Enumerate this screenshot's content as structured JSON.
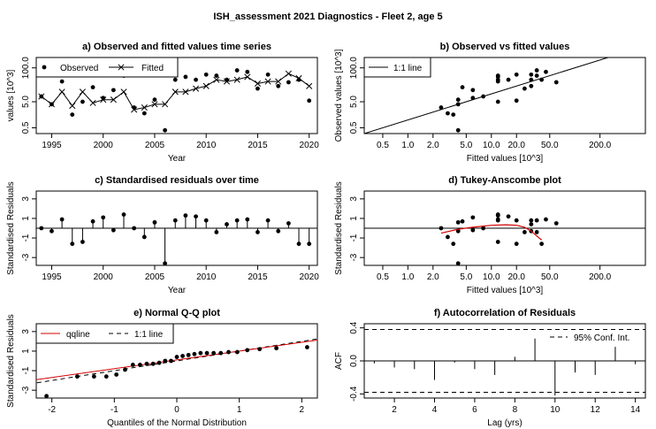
{
  "chart_data": {
    "suptitle": "ISH_assessment 2021 Diagnostics - Fleet 2, age 5",
    "panels": [
      {
        "id": "a",
        "type": "line",
        "title": "a) Observed and fitted values time series",
        "xlabel": "Year",
        "ylabel": "values [10^3]",
        "yscale": "log",
        "xlim": [
          1993.5,
          2020.8
        ],
        "ylim": [
          0.3,
          250
        ],
        "xticks": [
          1995,
          2000,
          2005,
          2010,
          2015,
          2020
        ],
        "yticks": [
          0.5,
          5.0,
          100.0
        ],
        "ytick_labels": [
          "0.5",
          "5.0",
          "100.0"
        ],
        "legend": [
          "Observed",
          "Fitted"
        ],
        "years": [
          1994,
          1995,
          1996,
          1997,
          1998,
          1999,
          2000,
          2001,
          2002,
          2003,
          2004,
          2005,
          2006,
          2007,
          2008,
          2009,
          2010,
          2011,
          2012,
          2013,
          2014,
          2015,
          2016,
          2017,
          2018,
          2019,
          2020
        ],
        "observed": [
          8,
          4,
          30,
          1.6,
          5,
          18,
          7,
          14,
          50,
          3,
          1.8,
          6,
          0.4,
          35,
          45,
          35,
          55,
          50,
          35,
          80,
          70,
          16,
          55,
          20,
          28,
          35,
          5.5
        ],
        "fitted": [
          8,
          4,
          12,
          3.5,
          12,
          4.5,
          6,
          6,
          12,
          2.5,
          3,
          4,
          4,
          12,
          12,
          16,
          20,
          35,
          30,
          35,
          45,
          25,
          30,
          30,
          60,
          40,
          20
        ]
      },
      {
        "id": "b",
        "type": "scatter",
        "title": "b) Observed vs fitted values",
        "xlabel": "Fitted values [10^3]",
        "ylabel": "Observed values [10^3]",
        "xscale": "log",
        "yscale": "log",
        "xlim": [
          0.3,
          700
        ],
        "ylim": [
          0.3,
          250
        ],
        "xticks": [
          0.5,
          1.0,
          2.0,
          5.0,
          10.0,
          20.0,
          50.0,
          200.0
        ],
        "xtick_labels": [
          "0.5",
          "1.0",
          "2.0",
          "5.0",
          "10.0",
          "20.0",
          "50.0",
          "200.0"
        ],
        "yticks": [
          0.5,
          5.0,
          100.0
        ],
        "ytick_labels": [
          "0.5",
          "5.0",
          "100.0"
        ],
        "legend": [
          "1:1 line"
        ],
        "x": [
          8,
          4,
          12,
          3.5,
          12,
          4.5,
          6,
          6,
          12,
          2.5,
          3,
          4,
          4,
          12,
          12,
          16,
          20,
          35,
          30,
          35,
          45,
          25,
          30,
          30,
          60,
          40,
          20
        ],
        "y": [
          8,
          4,
          30,
          1.6,
          5,
          18,
          7,
          14,
          50,
          3,
          1.8,
          6,
          0.4,
          35,
          45,
          35,
          55,
          50,
          35,
          80,
          70,
          16,
          55,
          20,
          28,
          35,
          5.5
        ]
      },
      {
        "id": "c",
        "type": "stem",
        "title": "c) Standardised residuals over time",
        "xlabel": "Year",
        "ylabel": "Standardised Residuals",
        "xlim": [
          1993.5,
          2020.8
        ],
        "ylim": [
          -3.8,
          3.8
        ],
        "xticks": [
          1995,
          2000,
          2005,
          2010,
          2015,
          2020
        ],
        "yticks": [
          -3,
          -1,
          1,
          3
        ],
        "years": [
          1994,
          1995,
          1996,
          1997,
          1998,
          1999,
          2000,
          2001,
          2002,
          2003,
          2004,
          2005,
          2006,
          2007,
          2008,
          2009,
          2010,
          2011,
          2012,
          2013,
          2014,
          2015,
          2016,
          2017,
          2018,
          2019,
          2020
        ],
        "residuals": [
          0.0,
          -0.3,
          0.9,
          -1.6,
          -1.4,
          0.7,
          1.1,
          -0.2,
          1.4,
          0.0,
          -0.9,
          0.6,
          -3.6,
          0.8,
          1.3,
          1.2,
          0.8,
          -0.4,
          0.4,
          0.8,
          0.9,
          -0.4,
          0.8,
          -0.3,
          0.5,
          -1.6,
          -1.6
        ]
      },
      {
        "id": "d",
        "type": "scatter",
        "title": "d) Tukey-Anscombe plot",
        "xlabel": "Fitted values [10^3]",
        "ylabel": "Standardised Residuals",
        "xscale": "log",
        "xlim": [
          0.3,
          700
        ],
        "ylim": [
          -3.8,
          3.8
        ],
        "xticks": [
          0.5,
          1.0,
          2.0,
          5.0,
          10.0,
          20.0,
          50.0,
          200.0
        ],
        "xtick_labels": [
          "0.5",
          "1.0",
          "2.0",
          "5.0",
          "10.0",
          "20.0",
          "50.0",
          "200.0"
        ],
        "yticks": [
          -3,
          -1,
          1,
          3
        ],
        "smooth_x": [
          2.5,
          4,
          6,
          10,
          15,
          20,
          25,
          30,
          35,
          40
        ],
        "smooth_y": [
          -0.5,
          -0.1,
          0.1,
          0.3,
          0.35,
          0.3,
          0.1,
          -0.3,
          -0.8,
          -1.2
        ]
      },
      {
        "id": "e",
        "type": "qq",
        "title": "e) Normal Q-Q plot",
        "xlabel": "Quantiles of the Normal Distribution",
        "ylabel": "Standardised Residuals",
        "xlim": [
          -2.25,
          2.25
        ],
        "ylim": [
          -3.8,
          3.8
        ],
        "xticks": [
          -2,
          -1,
          0,
          1,
          2
        ],
        "yticks": [
          -3,
          -1,
          1,
          3
        ],
        "legend": [
          "qqline",
          "1:1 line"
        ],
        "qqline": {
          "intercept": 0.1,
          "slope": 0.9
        }
      },
      {
        "id": "f",
        "type": "acf",
        "title": "f) Autocorrelation of Residuals",
        "xlabel": "Lag (yrs)",
        "ylabel": "ACF",
        "xlim": [
          0.5,
          14.5
        ],
        "ylim": [
          -0.45,
          0.45
        ],
        "xticks": [
          2,
          4,
          6,
          8,
          10,
          12,
          14
        ],
        "yticks": [
          -0.4,
          0.0,
          0.4
        ],
        "ytick_labels": [
          "-0.4",
          "0.0",
          "0.4"
        ],
        "legend": [
          "95% Conf. Int."
        ],
        "conf": 0.38,
        "lags": [
          1,
          2,
          3,
          4,
          5,
          6,
          7,
          8,
          9,
          10,
          11,
          12,
          13,
          14
        ],
        "acf": [
          -0.03,
          -0.08,
          -0.1,
          -0.23,
          -0.02,
          -0.1,
          -0.17,
          0.05,
          0.27,
          -0.42,
          -0.14,
          -0.17,
          0.17,
          -0.04
        ]
      }
    ]
  }
}
